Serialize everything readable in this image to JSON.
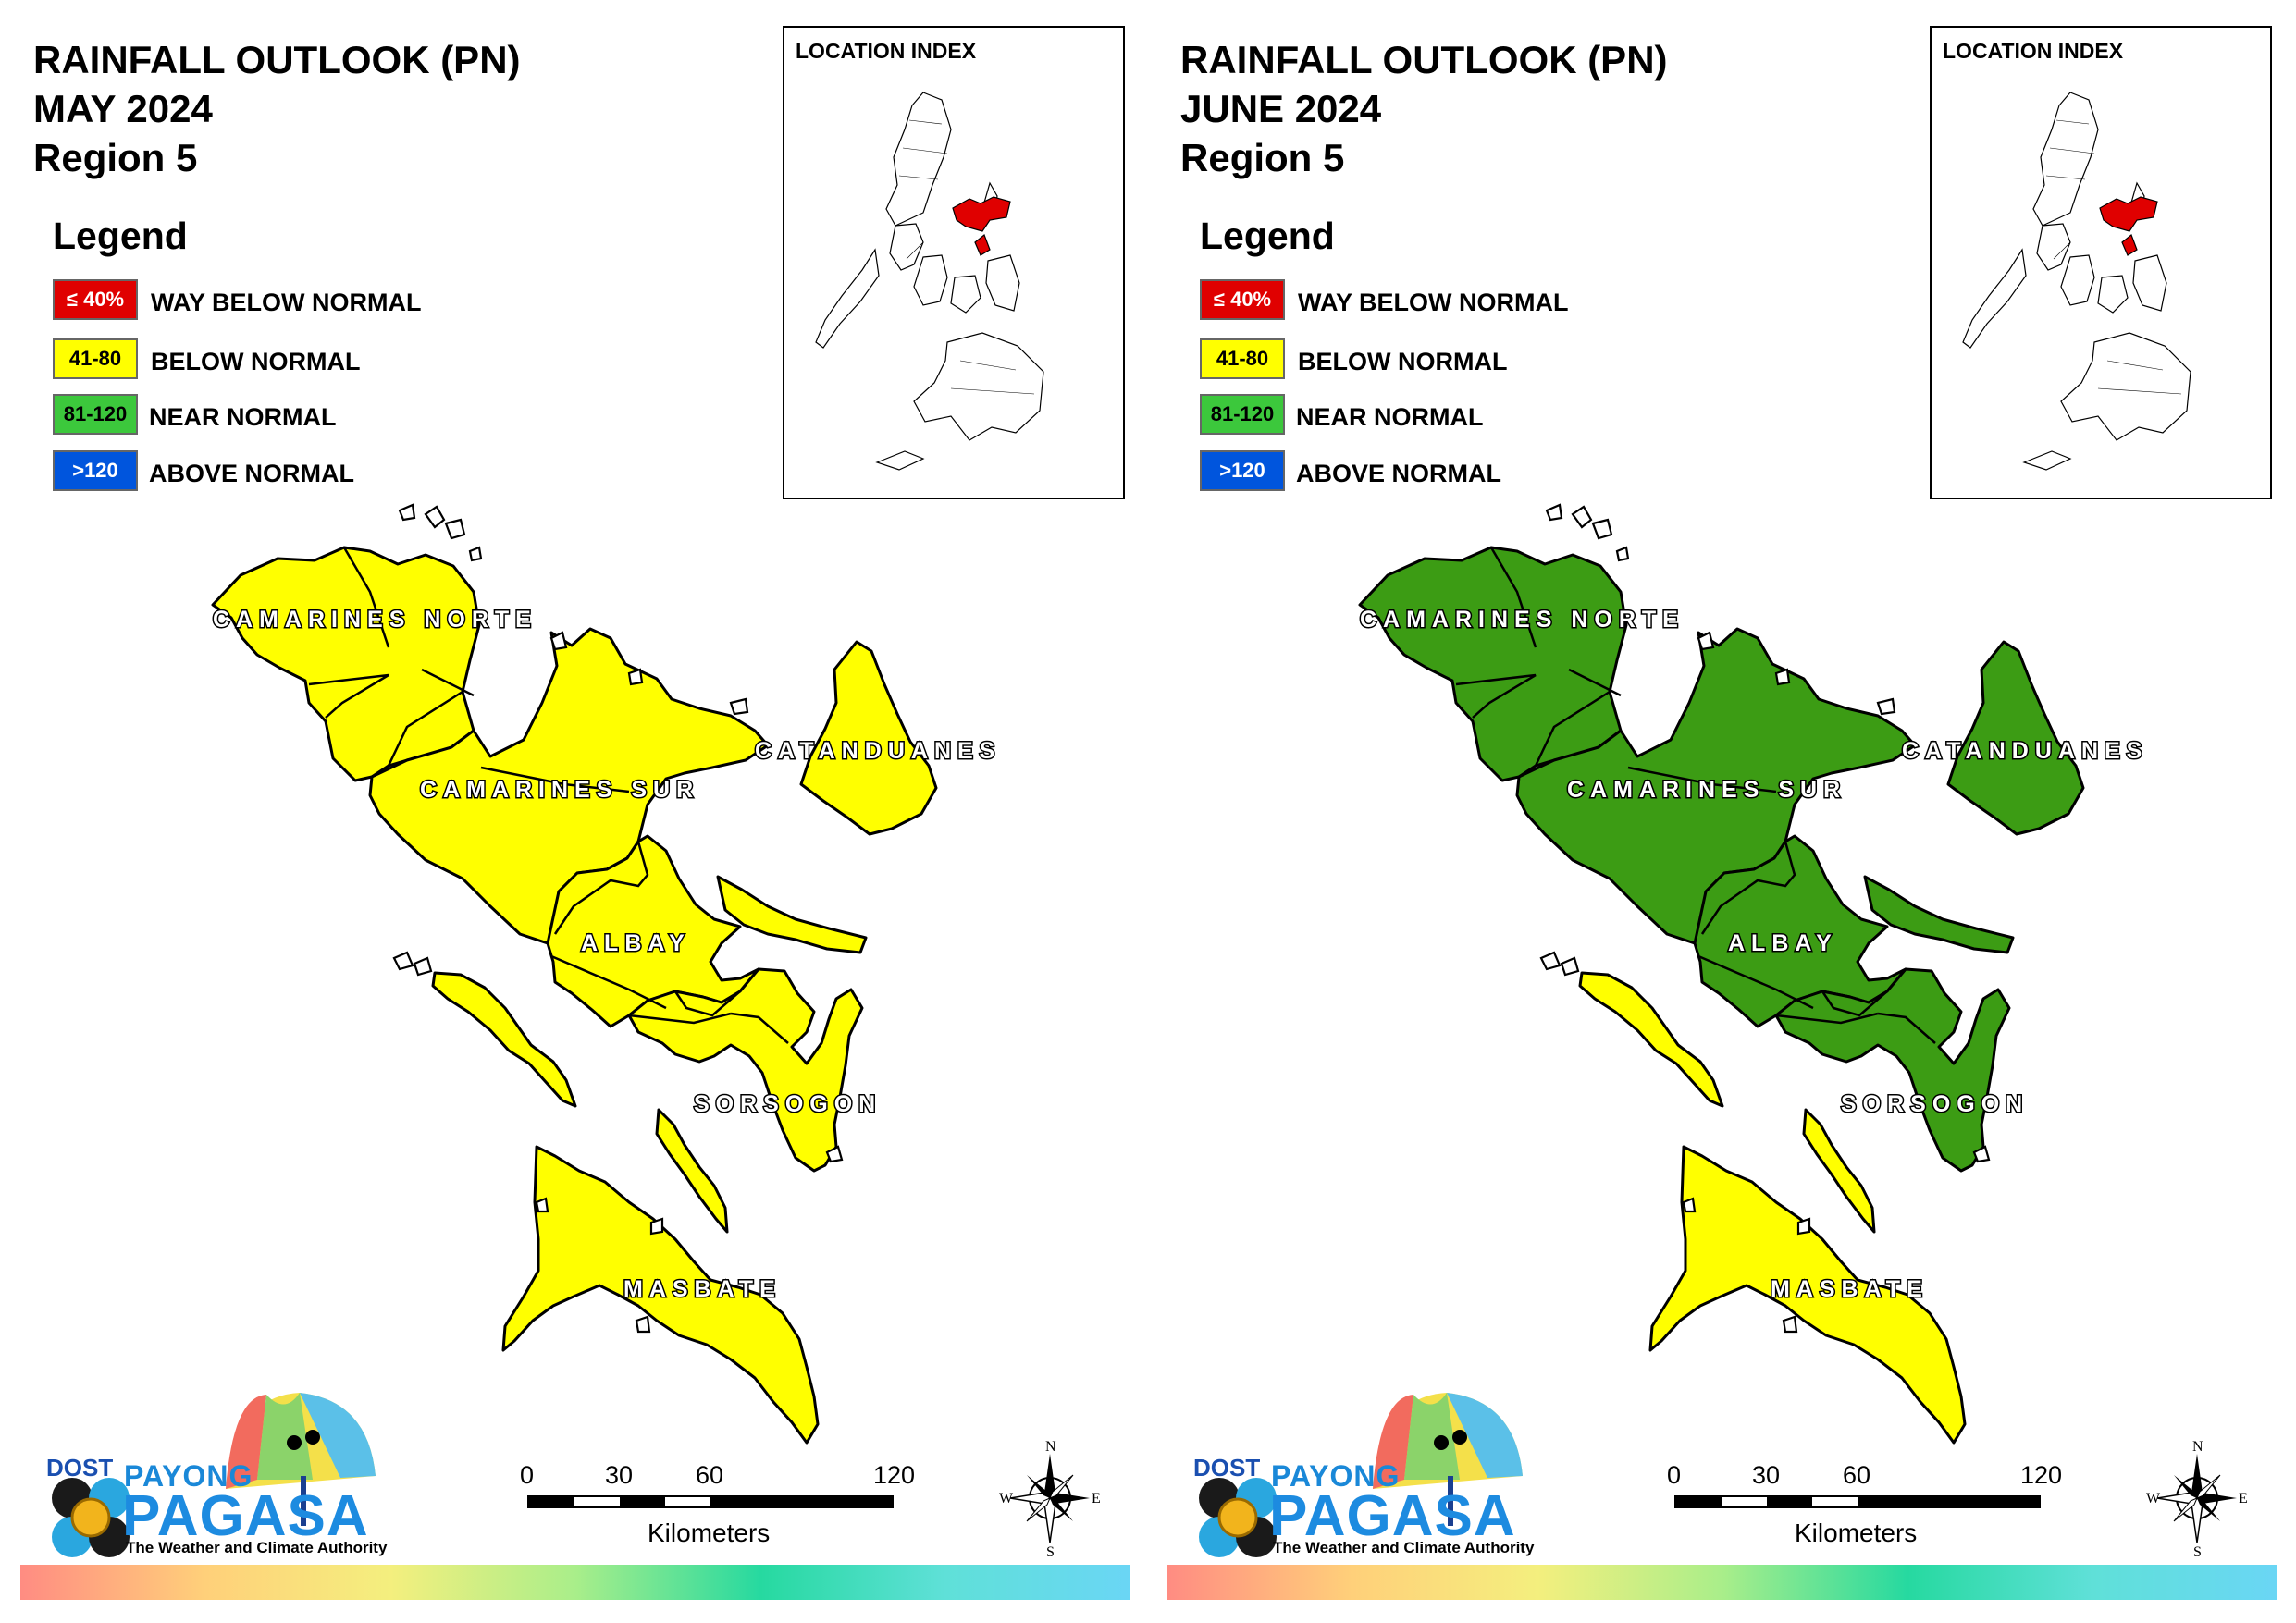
{
  "legend": {
    "title": "Legend",
    "items": [
      {
        "range": "≤ 40%",
        "label": "WAY BELOW NORMAL",
        "color": "#e00000",
        "text_color": "#ffffff"
      },
      {
        "range": "41-80",
        "label": "BELOW NORMAL",
        "color": "#ffff00",
        "text_color": "#000000"
      },
      {
        "range": "81-120",
        "label": "NEAR NORMAL",
        "color": "#3cc83c",
        "text_color": "#000000"
      },
      {
        "range": ">120",
        "label": "ABOVE NORMAL",
        "color": "#0055dd",
        "text_color": "#ffffff"
      }
    ]
  },
  "inset_title": "LOCATION INDEX",
  "inset_highlight_color": "#e00000",
  "province_labels": [
    "CAMARINES NORTE",
    "CAMARINES SUR",
    "CATANDUANES",
    "ALBAY",
    "SORSOGON",
    "MASBATE"
  ],
  "scale": {
    "ticks": [
      "0",
      "30",
      "60",
      "120"
    ],
    "unit": "Kilometers"
  },
  "compass": {
    "n": "N",
    "e": "E",
    "s": "S",
    "w": "W"
  },
  "logo": {
    "dost": "DOST",
    "payong": "PAYONG",
    "pagasa": "PAGASA",
    "tagline": "The Weather and Climate Authority"
  },
  "maps": [
    {
      "title_line1": "RAINFALL OUTLOOK (PN)",
      "title_line2": "MAY 2024",
      "title_line3": "Region 5",
      "province_categories": {
        "CAMARINES NORTE": "BELOW NORMAL",
        "CAMARINES SUR": "BELOW NORMAL",
        "CATANDUANES": "BELOW NORMAL",
        "ALBAY": "BELOW NORMAL",
        "SORSOGON": "BELOW NORMAL",
        "MASBATE": "BELOW NORMAL"
      },
      "province_colors": {
        "CAMARINES NORTE": "#ffff00",
        "CAMARINES SUR": "#ffff00",
        "CATANDUANES": "#ffff00",
        "ALBAY": "#ffff00",
        "SORSOGON": "#ffff00",
        "MASBATE": "#ffff00"
      }
    },
    {
      "title_line1": "RAINFALL OUTLOOK (PN)",
      "title_line2": "JUNE 2024",
      "title_line3": "Region 5",
      "province_categories": {
        "CAMARINES NORTE": "NEAR NORMAL",
        "CAMARINES SUR": "NEAR NORMAL",
        "CATANDUANES": "NEAR NORMAL",
        "ALBAY": "NEAR NORMAL",
        "SORSOGON": "NEAR NORMAL",
        "MASBATE": "BELOW NORMAL"
      },
      "province_colors": {
        "CAMARINES NORTE": "#3c9c14",
        "CAMARINES SUR": "#3c9c14",
        "CATANDUANES": "#3c9c14",
        "ALBAY": "#3c9c14",
        "SORSOGON": "#3c9c14",
        "MASBATE": "#ffff00"
      }
    }
  ]
}
